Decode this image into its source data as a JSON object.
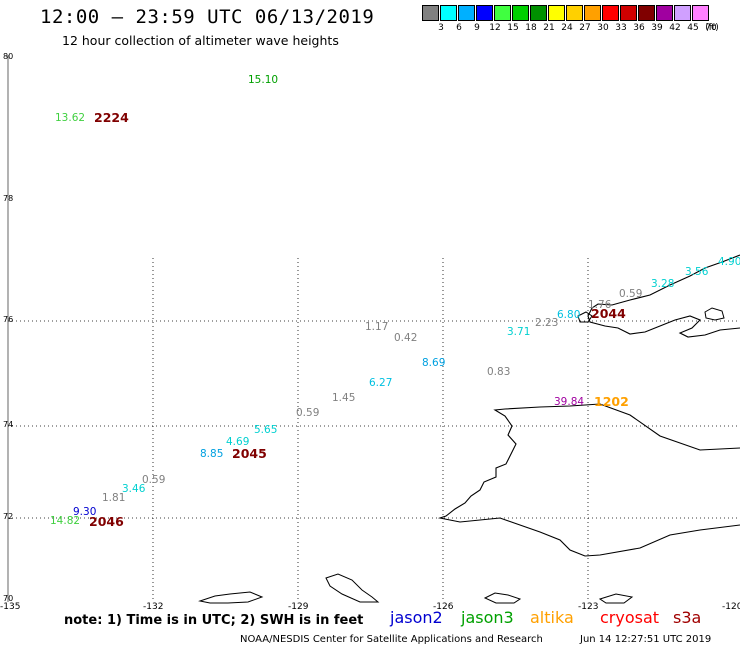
{
  "header": {
    "title": "12:00 – 23:59 UTC 06/13/2019",
    "subtitle": "12 hour collection of altimeter wave heights"
  },
  "legend": {
    "swatches": [
      {
        "color": "#808080",
        "label": "3"
      },
      {
        "color": "#00ffff",
        "label": "6"
      },
      {
        "color": "#00b0ff",
        "label": "9"
      },
      {
        "color": "#0000ff",
        "label": "12"
      },
      {
        "color": "#40ff40",
        "label": "15"
      },
      {
        "color": "#00d000",
        "label": "18"
      },
      {
        "color": "#009000",
        "label": "21"
      },
      {
        "color": "#ffff00",
        "label": "24"
      },
      {
        "color": "#ffd000",
        "label": "27"
      },
      {
        "color": "#ffa000",
        "label": "30"
      },
      {
        "color": "#ff0000",
        "label": "33"
      },
      {
        "color": "#d00000",
        "label": "36"
      },
      {
        "color": "#800000",
        "label": "39"
      },
      {
        "color": "#a000a0",
        "label": "42"
      },
      {
        "color": "#d0a0ff",
        "label": "45"
      },
      {
        "color": "#ff80ff",
        "label": "70"
      },
      {
        "color": "#000000",
        "label": "(ft)"
      }
    ]
  },
  "axes": {
    "lat_labels": [
      "80",
      "78",
      "76",
      "74",
      "72",
      "70"
    ],
    "lon_labels": [
      "-135",
      "-132",
      "-129",
      "-126",
      "-123",
      "-120"
    ]
  },
  "wave_heights": [
    {
      "text": "15.10",
      "color": "#00a000"
    },
    {
      "text": "13.62",
      "color": "#40d040"
    },
    {
      "text": "4.90",
      "color": "#00d0d0"
    },
    {
      "text": "3.56",
      "color": "#00d0d0"
    },
    {
      "text": "3.28",
      "color": "#00d0d0"
    },
    {
      "text": "0.59",
      "color": "#808080"
    },
    {
      "text": "1.76",
      "color": "#808080"
    },
    {
      "text": "6.80",
      "color": "#00c0e0"
    },
    {
      "text": "2.23",
      "color": "#808080"
    },
    {
      "text": "1.17",
      "color": "#808080"
    },
    {
      "text": "0.42",
      "color": "#808080"
    },
    {
      "text": "3.71",
      "color": "#00d0d0"
    },
    {
      "text": "8.69",
      "color": "#00a0e0"
    },
    {
      "text": "0.83",
      "color": "#808080"
    },
    {
      "text": "6.27",
      "color": "#00c0e0"
    },
    {
      "text": "1.45",
      "color": "#808080"
    },
    {
      "text": "39.84",
      "color": "#a000a0"
    },
    {
      "text": "0.59",
      "color": "#808080"
    },
    {
      "text": "5.65",
      "color": "#00d0d0"
    },
    {
      "text": "4.69",
      "color": "#00d0d0"
    },
    {
      "text": "8.85",
      "color": "#00a0e0"
    },
    {
      "text": "0.59",
      "color": "#808080"
    },
    {
      "text": "3.46",
      "color": "#00d0d0"
    },
    {
      "text": "1.81",
      "color": "#808080"
    },
    {
      "text": "9.30",
      "color": "#0000d0"
    },
    {
      "text": "14.82",
      "color": "#40d040"
    }
  ],
  "pass_times": [
    {
      "text": "2224",
      "color": "#800000"
    },
    {
      "text": "2044",
      "color": "#800000"
    },
    {
      "text": "1202",
      "color": "#ffa000"
    },
    {
      "text": "2045",
      "color": "#800000"
    },
    {
      "text": "2046",
      "color": "#800000"
    }
  ],
  "footer": {
    "note": "note: 1) Time is in UTC; 2) SWH is in feet",
    "satellites": [
      {
        "name": "jason2",
        "color": "#0000d0"
      },
      {
        "name": "jason3",
        "color": "#00a000"
      },
      {
        "name": "altika",
        "color": "#ffa000"
      },
      {
        "name": "cryosat",
        "color": "#ff0000"
      },
      {
        "name": "s3a",
        "color": "#a00000"
      }
    ],
    "credit": "NOAA/NESDIS Center for Satellite Applications and Research",
    "timestamp": "Jun 14 12:27:51 UTC 2019"
  }
}
